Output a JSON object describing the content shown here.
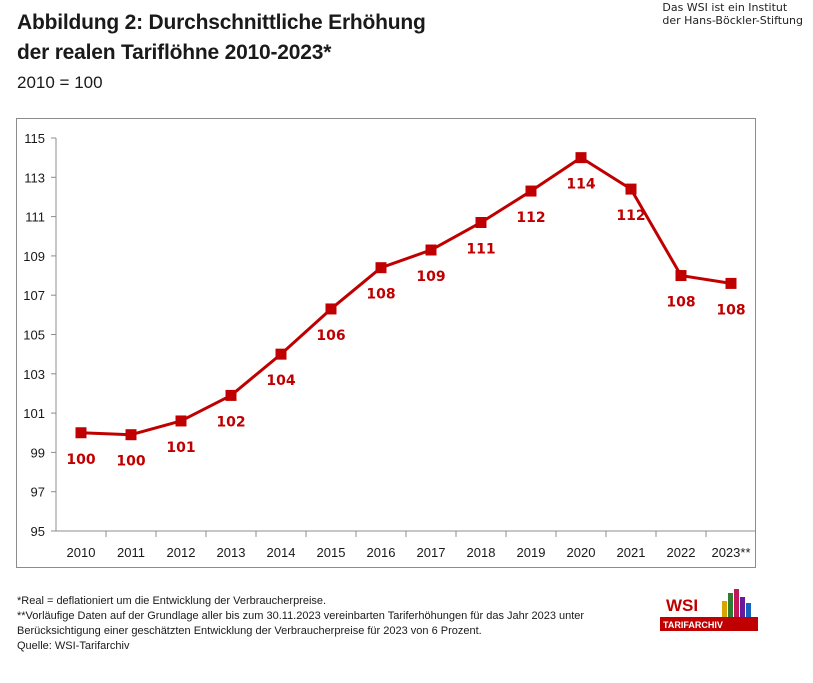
{
  "header": {
    "title_line1": "Abbildung 2: Durchschnittliche Erhöhung",
    "title_line2": "der realen Tariflöhne 2010-2023*",
    "subtitle": "2010 = 100",
    "institute_line1": "Das WSI ist ein Institut",
    "institute_line2": "der Hans-Böckler-Stiftung"
  },
  "chart_data": {
    "type": "line",
    "title": "Abbildung 2: Durchschnittliche Erhöhung der realen Tariflöhne 2010-2023*",
    "subtitle": "2010 = 100",
    "categories": [
      "2010",
      "2011",
      "2012",
      "2013",
      "2014",
      "2015",
      "2016",
      "2017",
      "2018",
      "2019",
      "2020",
      "2021",
      "2022",
      "2023**"
    ],
    "series": [
      {
        "values": [
          100.0,
          99.9,
          100.6,
          101.9,
          104.0,
          106.3,
          108.4,
          109.3,
          110.7,
          112.3,
          114.0,
          112.4,
          108.0,
          107.6
        ],
        "labels": [
          "100",
          "100",
          "101",
          "102",
          "104",
          "106",
          "108",
          "109",
          "111",
          "112",
          "114",
          "112",
          "108",
          "108"
        ],
        "color": "#c00000"
      }
    ],
    "ylim": [
      95,
      115
    ],
    "yticks": [
      "95",
      "97",
      "99",
      "101",
      "103",
      "105",
      "107",
      "109",
      "111",
      "113",
      "115"
    ],
    "grid": false,
    "legend": "none",
    "xlabel": "",
    "ylabel": ""
  },
  "footnotes": {
    "line1": "*Real = deflationiert um die Entwicklung der Verbraucherpreise.",
    "line2": "**Vorläufige Daten auf der Grundlage aller bis zum 30.11.2023 vereinbarten Tariferhöhungen für das Jahr 2023 unter",
    "line3": "Berücksichtigung einer geschätzten Entwicklung der Verbraucherpreise für 2023 von 6 Prozent.",
    "source": "Quelle: WSI-Tarifarchiv"
  },
  "logo": {
    "text_top": "WSI",
    "text_bottom": "TARIFARCHIV",
    "color": "#c00000"
  }
}
